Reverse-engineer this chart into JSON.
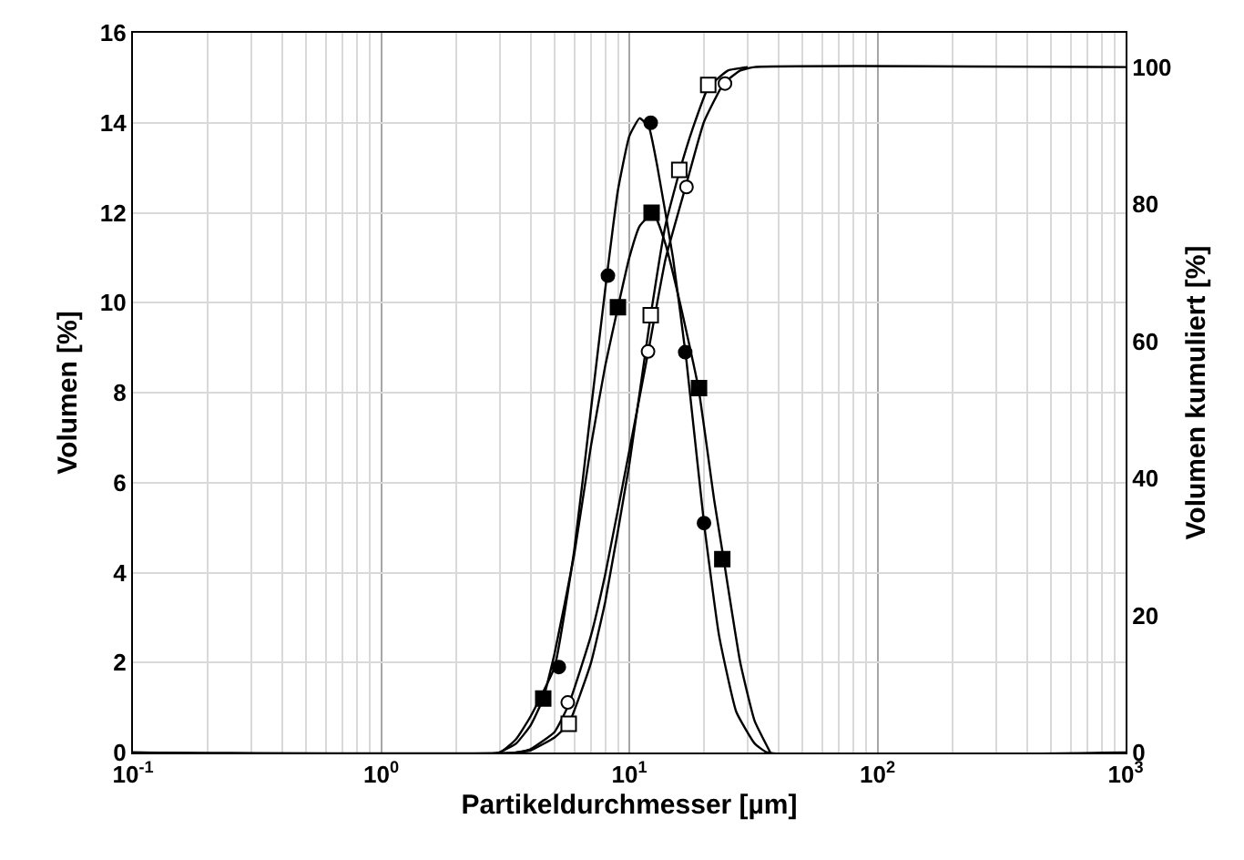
{
  "chart_data": {
    "type": "scatter",
    "xlabel": "Partikeldurchmesser [µm]",
    "ylabel": "Volumen [%]",
    "y2label": "Volumen kumuliert [%]",
    "log": "x",
    "grid": true,
    "xlim": [
      0.1,
      1000
    ],
    "xticks": [
      {
        "value": 0.1,
        "label": "10$^{-1}$"
      },
      {
        "value": 1,
        "label": "10$^{0}$"
      },
      {
        "value": 10,
        "label": "10$^{1}$"
      },
      {
        "value": 100,
        "label": "10$^{2}$"
      },
      {
        "value": 1000,
        "label": "10$^{3}$"
      }
    ],
    "ylim": [
      0,
      16
    ],
    "yticks": [
      0,
      2,
      4,
      6,
      8,
      10,
      12,
      14,
      16
    ],
    "y2lim": [
      0,
      105
    ],
    "y2ticks": [
      0,
      20,
      40,
      60,
      80,
      100
    ],
    "series": [
      {
        "type": "line",
        "color": "#000000",
        "marker": "none",
        "x": [
          0.1,
          3,
          3.5,
          4,
          5,
          6,
          7,
          8,
          9,
          10,
          11,
          12,
          13,
          15,
          17,
          20,
          23,
          27,
          32,
          36,
          1000
        ],
        "values": [
          0,
          0,
          0.3,
          0.8,
          1.9,
          4.5,
          7.6,
          10.3,
          12.5,
          13.7,
          14.1,
          13.9,
          13.0,
          11.0,
          8.7,
          5.1,
          2.6,
          0.9,
          0.2,
          0,
          0
        ]
      },
      {
        "type": "line",
        "color": "#000000",
        "marker": "none",
        "x": [
          3,
          3.5,
          4,
          4.5,
          5,
          6,
          7,
          8,
          9,
          10,
          11,
          12.5,
          14,
          16,
          19,
          22,
          24,
          28,
          32,
          37
        ],
        "values": [
          0,
          0.2,
          0.6,
          1.2,
          2.2,
          4.4,
          6.8,
          8.6,
          9.9,
          11.0,
          11.7,
          12.0,
          11.3,
          10.0,
          8.1,
          5.6,
          4.3,
          2.0,
          0.7,
          0
        ]
      },
      {
        "type": "line",
        "axis": "y2",
        "color": "#000000",
        "marker": "none",
        "x": [
          0.1,
          3.5,
          4,
          5,
          5.7,
          7,
          8,
          10,
          12,
          14,
          17,
          20,
          24,
          28,
          32,
          1000
        ],
        "values": [
          0,
          0,
          0.5,
          3,
          7,
          17,
          26,
          44,
          59,
          72,
          83,
          92,
          97.6,
          99.5,
          100,
          100
        ]
      },
      {
        "type": "line",
        "axis": "y2",
        "color": "#000000",
        "marker": "none",
        "x": [
          3.5,
          4,
          5,
          5.7,
          7,
          8,
          10,
          12.2,
          14,
          16,
          18,
          20.8,
          25,
          30
        ],
        "values": [
          0,
          0.3,
          2.2,
          4.2,
          13,
          22,
          42,
          63.8,
          77,
          85,
          91,
          97,
          99.5,
          100
        ]
      },
      {
        "color": "#000000",
        "marker": "circle",
        "x": [
          5.2,
          8.2,
          12.2,
          16.8,
          20
        ],
        "values": [
          1.9,
          10.6,
          14.0,
          8.9,
          5.1
        ]
      },
      {
        "color": "#000000",
        "marker": "square",
        "x": [
          4.5,
          9.0,
          12.3,
          19.1,
          23.7
        ],
        "values": [
          1.2,
          9.9,
          12.0,
          8.1,
          4.3
        ]
      },
      {
        "axis": "y2",
        "color": "#ffffff",
        "marker": "circle",
        "x": [
          5.65,
          11.9,
          17.0,
          24.3
        ],
        "values": [
          7.3,
          58.5,
          82.5,
          97.6
        ]
      },
      {
        "axis": "y2",
        "color": "#ffffff",
        "marker": "square",
        "x": [
          5.7,
          12.2,
          15.9,
          20.8
        ],
        "values": [
          4.2,
          63.8,
          85,
          97.4
        ]
      }
    ]
  }
}
